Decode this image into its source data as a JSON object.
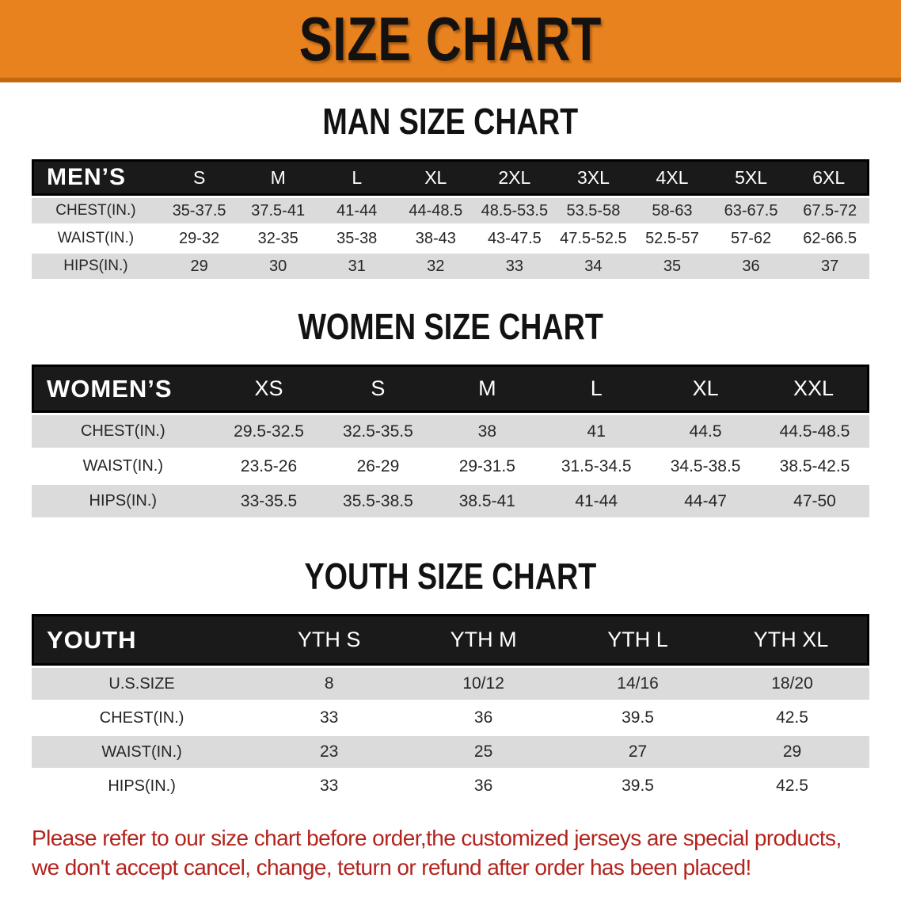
{
  "banner": {
    "title": "SIZE CHART",
    "bg_color": "#E8821E",
    "border_color": "#C4690F",
    "text_color": "#131210"
  },
  "colors": {
    "row_shaded": "#DBDBDB",
    "row_plain": "#FFFFFF",
    "table_header_bg": "#1A1A1A",
    "footer_text": "#B3241E"
  },
  "sections": [
    {
      "heading": "MAN SIZE CHART",
      "table": {
        "header": [
          "MEN’S",
          "S",
          "M",
          "L",
          "XL",
          "2XL",
          "3XL",
          "4XL",
          "5XL",
          "6XL"
        ],
        "rows": [
          {
            "label": "CHEST(IN.)",
            "values": [
              "35-37.5",
              "37.5-41",
              "41-44",
              "44-48.5",
              "48.5-53.5",
              "53.5-58",
              "58-63",
              "63-67.5",
              "67.5-72"
            ]
          },
          {
            "label": "WAIST(IN.)",
            "values": [
              "29-32",
              "32-35",
              "35-38",
              "38-43",
              "43-47.5",
              "47.5-52.5",
              "52.5-57",
              "57-62",
              "62-66.5"
            ]
          },
          {
            "label": "HIPS(IN.)",
            "values": [
              "29",
              "30",
              "31",
              "32",
              "33",
              "34",
              "35",
              "36",
              "37"
            ]
          }
        ]
      }
    },
    {
      "heading": "WOMEN SIZE CHART",
      "table": {
        "header": [
          "WOMEN’S",
          "XS",
          "S",
          "M",
          "L",
          "XL",
          "XXL"
        ],
        "rows": [
          {
            "label": "CHEST(IN.)",
            "values": [
              "29.5-32.5",
              "32.5-35.5",
              "38",
              "41",
              "44.5",
              "44.5-48.5"
            ]
          },
          {
            "label": "WAIST(IN.)",
            "values": [
              "23.5-26",
              "26-29",
              "29-31.5",
              "31.5-34.5",
              "34.5-38.5",
              "38.5-42.5"
            ]
          },
          {
            "label": "HIPS(IN.)",
            "values": [
              "33-35.5",
              "35.5-38.5",
              "38.5-41",
              "41-44",
              "44-47",
              "47-50"
            ]
          }
        ]
      }
    },
    {
      "heading": "YOUTH SIZE CHART",
      "table": {
        "header": [
          "YOUTH",
          "YTH S",
          "YTH M",
          "YTH L",
          "YTH XL"
        ],
        "rows": [
          {
            "label": "U.S.SIZE",
            "values": [
              "8",
              "10/12",
              "14/16",
              "18/20"
            ]
          },
          {
            "label": "CHEST(IN.)",
            "values": [
              "33",
              "36",
              "39.5",
              "42.5"
            ]
          },
          {
            "label": "WAIST(IN.)",
            "values": [
              "23",
              "25",
              "27",
              "29"
            ]
          },
          {
            "label": "HIPS(IN.)",
            "values": [
              "33",
              "36",
              "39.5",
              "42.5"
            ]
          }
        ]
      }
    }
  ],
  "footer_note": {
    "lines": [
      "Please refer to our size chart before order,the customized jerseys are special products,",
      "we don't accept cancel, change, teturn or refund after order has been placed!"
    ]
  }
}
